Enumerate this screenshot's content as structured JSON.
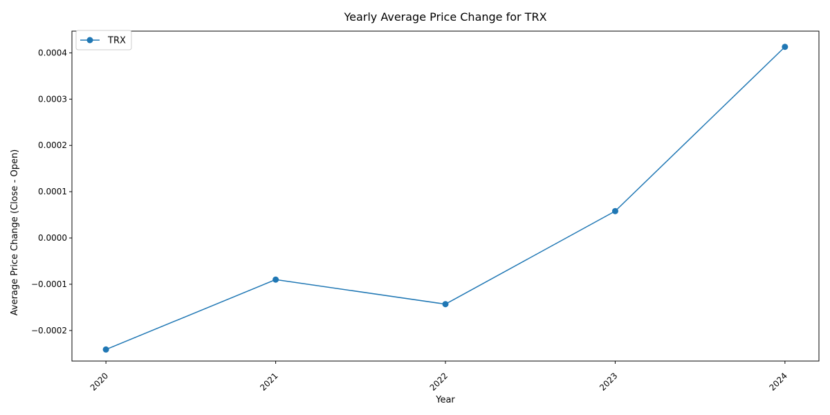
{
  "chart_data": {
    "type": "line",
    "title": "Yearly Average Price Change for TRX",
    "xlabel": "Year",
    "ylabel": "Average Price Change (Close - Open)",
    "categories": [
      "2020",
      "2021",
      "2022",
      "2023",
      "2024"
    ],
    "series": [
      {
        "name": "TRX",
        "color": "#1f77b4",
        "marker": "circle",
        "values": [
          -0.000241,
          -9e-05,
          -0.000143,
          5.8e-05,
          0.000413
        ]
      }
    ],
    "ylim": [
      -0.000266,
      0.000447
    ],
    "yticks": [
      -0.0002,
      -0.0001,
      0.0,
      0.0001,
      0.0002,
      0.0003,
      0.0004
    ],
    "ytick_labels": [
      "−0.0002",
      "−0.0001",
      "0.0000",
      "0.0001",
      "0.0002",
      "0.0003",
      "0.0004"
    ],
    "xtick_rotation_deg": 45,
    "legend_position": "upper-left",
    "grid": false
  }
}
